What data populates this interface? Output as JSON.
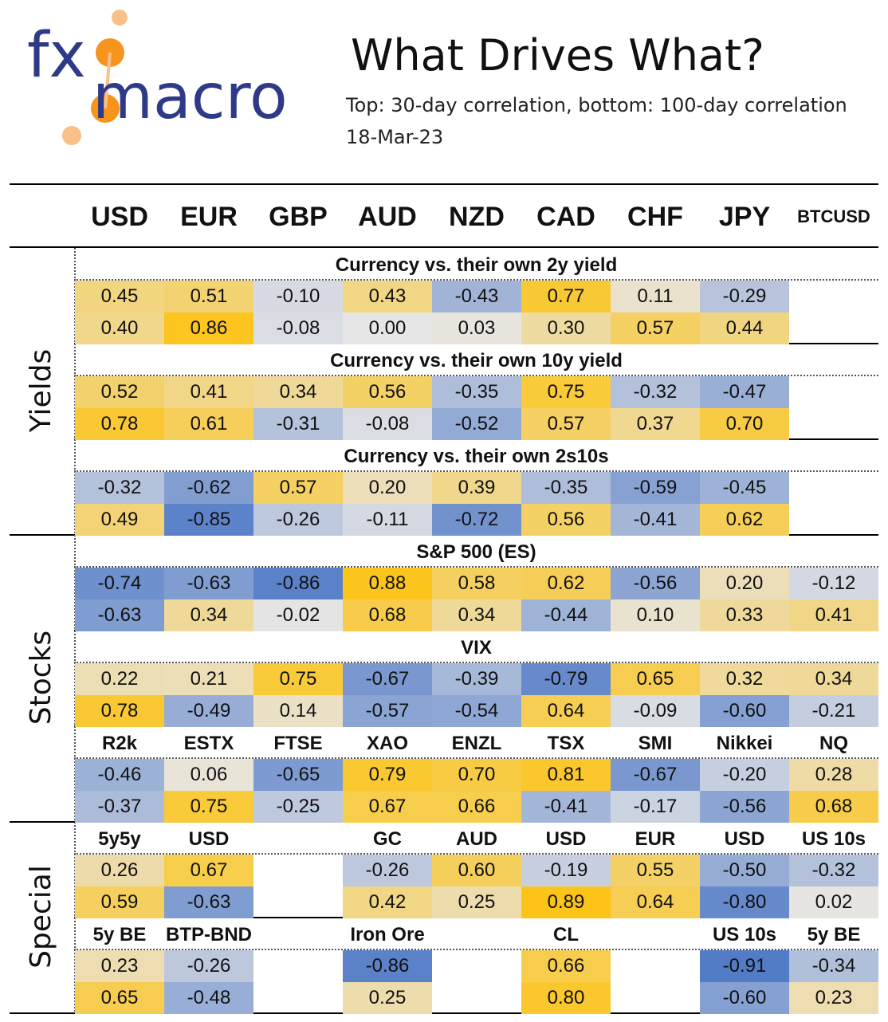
{
  "brand": {
    "logo_text_1": "fx",
    "logo_text_2": "macro"
  },
  "header": {
    "title": "What Drives What?",
    "subtitle": "Top: 30-day correlation, bottom: 100-day correlation",
    "date": "18-Mar-23"
  },
  "chart_data": {
    "type": "heatmap",
    "columns": [
      "USD",
      "EUR",
      "GBP",
      "AUD",
      "NZD",
      "CAD",
      "CHF",
      "JPY",
      "BTCUSD"
    ],
    "row_groups": [
      {
        "label": "Yields",
        "blocks": [
          0,
          1,
          2
        ]
      },
      {
        "label": "Stocks",
        "blocks": [
          3,
          4,
          5
        ]
      },
      {
        "label": "Special",
        "blocks": [
          6,
          7
        ]
      }
    ],
    "blocks": [
      {
        "title": "Currency vs. their own 2y yield",
        "labels": null,
        "top": [
          0.45,
          0.51,
          -0.1,
          0.43,
          -0.43,
          0.77,
          0.11,
          -0.29,
          null
        ],
        "bottom": [
          0.4,
          0.86,
          -0.08,
          0.0,
          0.03,
          0.3,
          0.57,
          0.44,
          null
        ]
      },
      {
        "title": "Currency vs. their own 10y yield",
        "labels": null,
        "top": [
          0.52,
          0.41,
          0.34,
          0.56,
          -0.35,
          0.75,
          -0.32,
          -0.47,
          null
        ],
        "bottom": [
          0.78,
          0.61,
          -0.31,
          -0.08,
          -0.52,
          0.57,
          0.37,
          0.7,
          null
        ]
      },
      {
        "title": "Currency vs. their own 2s10s",
        "labels": null,
        "top": [
          -0.32,
          -0.62,
          0.57,
          0.2,
          0.39,
          -0.35,
          -0.59,
          -0.45,
          null
        ],
        "bottom": [
          0.49,
          -0.85,
          -0.26,
          -0.11,
          -0.72,
          0.56,
          -0.41,
          0.62,
          null
        ]
      },
      {
        "title": "S&P 500 (ES)",
        "labels": null,
        "top": [
          -0.74,
          -0.63,
          -0.86,
          0.88,
          0.58,
          0.62,
          -0.56,
          0.2,
          -0.12
        ],
        "bottom": [
          -0.63,
          0.34,
          -0.02,
          0.68,
          0.34,
          -0.44,
          0.1,
          0.33,
          0.41
        ]
      },
      {
        "title": "VIX",
        "labels": null,
        "top": [
          0.22,
          0.21,
          0.75,
          -0.67,
          -0.39,
          -0.79,
          0.65,
          0.32,
          0.34
        ],
        "bottom": [
          0.78,
          -0.49,
          0.14,
          -0.57,
          -0.54,
          0.64,
          -0.09,
          -0.6,
          -0.21
        ]
      },
      {
        "title": "",
        "labels": [
          "R2k",
          "ESTX",
          "FTSE",
          "XAO",
          "ENZL",
          "TSX",
          "SMI",
          "Nikkei",
          "NQ"
        ],
        "top": [
          -0.46,
          0.06,
          -0.65,
          0.79,
          0.7,
          0.81,
          -0.67,
          -0.2,
          0.28
        ],
        "bottom": [
          -0.37,
          0.75,
          -0.25,
          0.67,
          0.66,
          -0.41,
          -0.17,
          -0.56,
          0.68
        ]
      },
      {
        "title": "",
        "labels": [
          "5y5y",
          "USD",
          "",
          "GC",
          "AUD",
          "USD",
          "EUR",
          "USD",
          "US 10s"
        ],
        "top": [
          0.26,
          0.67,
          null,
          -0.26,
          0.6,
          -0.19,
          0.55,
          -0.5,
          -0.32
        ],
        "bottom": [
          0.59,
          -0.63,
          null,
          0.42,
          0.25,
          0.89,
          0.64,
          -0.8,
          0.02
        ]
      },
      {
        "title": "",
        "labels": [
          "5y BE",
          "BTP-BND",
          "",
          "Iron Ore",
          "",
          "CL",
          "",
          "US 10s",
          "5y BE"
        ],
        "top": [
          0.23,
          -0.26,
          null,
          -0.86,
          null,
          0.66,
          null,
          -0.91,
          -0.34
        ],
        "bottom": [
          0.65,
          -0.48,
          null,
          0.25,
          null,
          0.8,
          null,
          -0.6,
          0.23
        ]
      }
    ],
    "color_scale": {
      "negative": "#4472c4",
      "neutral": "#e7e6e6",
      "positive": "#ffc000",
      "range": [
        -1,
        1
      ]
    }
  }
}
